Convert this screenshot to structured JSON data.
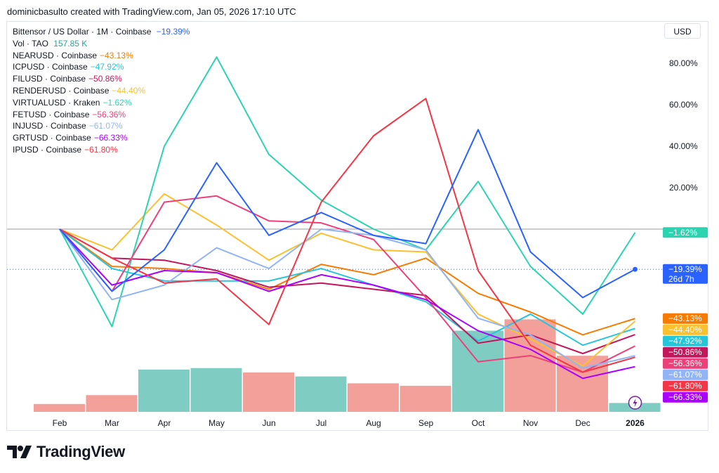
{
  "header": {
    "attribution": "dominicbasulto created with TradingView.com, Jan 05, 2026 17:10 UTC"
  },
  "currency_label": "USD",
  "branding": {
    "name": "TradingView"
  },
  "vol_legend": {
    "label": "Vol · TAO",
    "value": "157.85 K"
  },
  "countdown": "26d 7h",
  "chart_data": {
    "type": "line",
    "title": "Bittensor / US Dollar · 1M · Coinbase",
    "x": [
      "Feb",
      "Mar",
      "Apr",
      "May",
      "Jun",
      "Jul",
      "Aug",
      "Sep",
      "Oct",
      "Nov",
      "Dec",
      "2026"
    ],
    "x_label_display": [
      "Feb",
      "Mar",
      "Apr",
      "May",
      "Jun",
      "Jul",
      "Aug",
      "Sep",
      "Oct",
      "Nov",
      "Dec",
      "2026"
    ],
    "y_ticks": [
      80,
      60,
      40,
      20
    ],
    "y_tick_labels": [
      "80.00%",
      "60.00%",
      "40.00%",
      "20.00%"
    ],
    "ylim": [
      -90,
      95
    ],
    "y_unit": "%",
    "series": [
      {
        "name": "Bittensor / US Dollar · 1M · Coinbase",
        "legend": "Bittensor / US Dollar · 1M · Coinbase",
        "last": "−19.39%",
        "color": "#2962ff",
        "values": [
          0,
          -30,
          -10,
          32,
          -3,
          8,
          -3,
          -7,
          48,
          -11,
          -33,
          -19.39
        ]
      },
      {
        "name": "NEARUSD",
        "legend": "NEARUSD · Coinbase",
        "last": "−43.13%",
        "color": "#f57c00",
        "values": [
          0,
          -18,
          -19,
          -21,
          -29,
          -17,
          -22,
          -14,
          -31,
          -40,
          -51,
          -43.13
        ]
      },
      {
        "name": "ICPUSD",
        "legend": "ICPUSD · Coinbase",
        "last": "−47.92%",
        "color": "#26c6da",
        "values": [
          0,
          -19,
          -25,
          -25,
          -25,
          -19,
          -27,
          -35,
          -54,
          -41,
          -56,
          -47.92
        ]
      },
      {
        "name": "FILUSD",
        "legend": "FILUSD · Coinbase",
        "last": "−50.86%",
        "color": "#c2185b",
        "values": [
          0,
          -14,
          -15,
          -20,
          -28,
          -26,
          -29,
          -32,
          -55,
          -51,
          -60,
          -50.86
        ]
      },
      {
        "name": "RENDERUSD",
        "legend": "RENDERUSD · Coinbase",
        "last": "−44.40%",
        "color": "#fbc02d",
        "values": [
          0,
          -10,
          17,
          2,
          -15,
          -2,
          -10,
          -11,
          -41,
          -53,
          -66,
          -44.4
        ]
      },
      {
        "name": "VIRTUALUSD",
        "legend": "VIRTUALUSD · Kraken",
        "last": "−1.62%",
        "color": "#2bd4b0",
        "values": [
          0,
          -47,
          40,
          83,
          36,
          14,
          0,
          -10,
          23,
          -18,
          -41,
          -1.62
        ]
      },
      {
        "name": "FETUSD",
        "legend": "FETUSD · Coinbase",
        "last": "−56.36%",
        "color": "#ec407a",
        "values": [
          0,
          -30,
          13,
          16,
          4,
          3,
          -5,
          -33,
          -64,
          -61,
          -69,
          -56.36
        ]
      },
      {
        "name": "INJUSD",
        "legend": "INJUSD · Coinbase",
        "last": "−61.07%",
        "color": "#90b4f5",
        "values": [
          0,
          -34,
          -27,
          -9,
          -19,
          0,
          -3,
          -10,
          -43,
          -51,
          -67,
          -61.07
        ]
      },
      {
        "name": "GRTUSD",
        "legend": "GRTUSD · Coinbase",
        "last": "−66.33%",
        "color": "#aa00ff",
        "values": [
          0,
          -27,
          -20,
          -21,
          -30,
          -22,
          -27,
          -34,
          -49,
          -58,
          -72,
          -66.33
        ]
      },
      {
        "name": "IPUSD",
        "legend": "IPUSD · Coinbase",
        "last": "−61.80%",
        "color": "#f23645",
        "values": [
          0,
          -14,
          -26,
          -24,
          -46,
          13,
          45,
          63,
          -20,
          -56,
          -69,
          -61.8
        ]
      }
    ],
    "volume": {
      "name": "Vol · TAO",
      "values": [
        1.6,
        3.4,
        8.6,
        8.9,
        8.0,
        7.2,
        5.8,
        5.3,
        16.5,
        18.8,
        11.4,
        1.8
      ],
      "directions": [
        "down",
        "down",
        "up",
        "up",
        "down",
        "up",
        "down",
        "down",
        "up",
        "down",
        "down",
        "up"
      ],
      "up_color": "#7fccc3",
      "down_color": "#f4a09a",
      "max": 20
    }
  },
  "colors": {
    "zero_line": "#9598a1",
    "current_line": "#2962ff",
    "grid_text": "#131722"
  }
}
